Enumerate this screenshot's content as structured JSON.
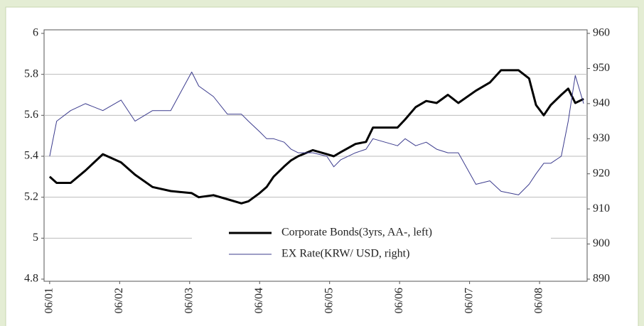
{
  "chart_data": {
    "type": "line",
    "x": [
      0,
      0.1,
      0.3,
      0.51,
      0.76,
      1.02,
      1.22,
      1.47,
      1.73,
      2.03,
      2.13,
      2.34,
      2.54,
      2.74,
      2.84,
      3.0,
      3.1,
      3.2,
      3.35,
      3.45,
      3.55,
      3.76,
      3.96,
      4.06,
      4.16,
      4.37,
      4.52,
      4.62,
      4.97,
      5.08,
      5.23,
      5.38,
      5.53,
      5.69,
      5.84,
      6.09,
      6.29,
      6.45,
      6.7,
      6.85,
      6.95,
      7.06,
      7.16,
      7.31,
      7.41,
      7.51,
      7.63
    ],
    "xlim": [
      -0.08,
      7.68
    ],
    "xticks": [
      {
        "value": 0,
        "label": "06/01"
      },
      {
        "value": 1,
        "label": "06/02"
      },
      {
        "value": 2,
        "label": "06/03"
      },
      {
        "value": 3,
        "label": "06/04"
      },
      {
        "value": 4,
        "label": "06/05"
      },
      {
        "value": 5,
        "label": "06/06"
      },
      {
        "value": 6,
        "label": "06/07"
      },
      {
        "value": 7,
        "label": "06/08"
      }
    ],
    "ylim": [
      4.8,
      6
    ],
    "yticks": [
      4.8,
      5,
      5.2,
      5.4,
      5.6,
      5.8,
      6
    ],
    "y2lim": [
      890,
      960
    ],
    "y2ticks": [
      890,
      900,
      910,
      920,
      930,
      940,
      950,
      960
    ],
    "grid": true,
    "series": [
      {
        "name": "Corporate Bonds(3yrs, AA-, left)",
        "color": "#000000",
        "axis": "y",
        "values": [
          5.3,
          5.27,
          5.27,
          5.33,
          5.41,
          5.37,
          5.31,
          5.25,
          5.23,
          5.22,
          5.2,
          5.21,
          5.19,
          5.17,
          5.18,
          5.22,
          5.25,
          5.3,
          5.35,
          5.38,
          5.4,
          5.43,
          5.41,
          5.4,
          5.42,
          5.46,
          5.47,
          5.54,
          5.54,
          5.58,
          5.64,
          5.67,
          5.66,
          5.7,
          5.66,
          5.72,
          5.76,
          5.82,
          5.82,
          5.78,
          5.65,
          5.6,
          5.65,
          5.7,
          5.73,
          5.66,
          5.68
        ]
      },
      {
        "name": "EX Rate(KRW/ USD, right)",
        "color": "#3c3c8e",
        "axis": "y2",
        "values": [
          925,
          935,
          938,
          940,
          938,
          941,
          935,
          938,
          938,
          949,
          945,
          942,
          937,
          937,
          935,
          932,
          930,
          930,
          929,
          927,
          926,
          926,
          925,
          922,
          924,
          926,
          927,
          930,
          928,
          930,
          928,
          929,
          927,
          926,
          926,
          917,
          918,
          915,
          914,
          917,
          920,
          923,
          923,
          925,
          935,
          948,
          940
        ]
      }
    ]
  }
}
